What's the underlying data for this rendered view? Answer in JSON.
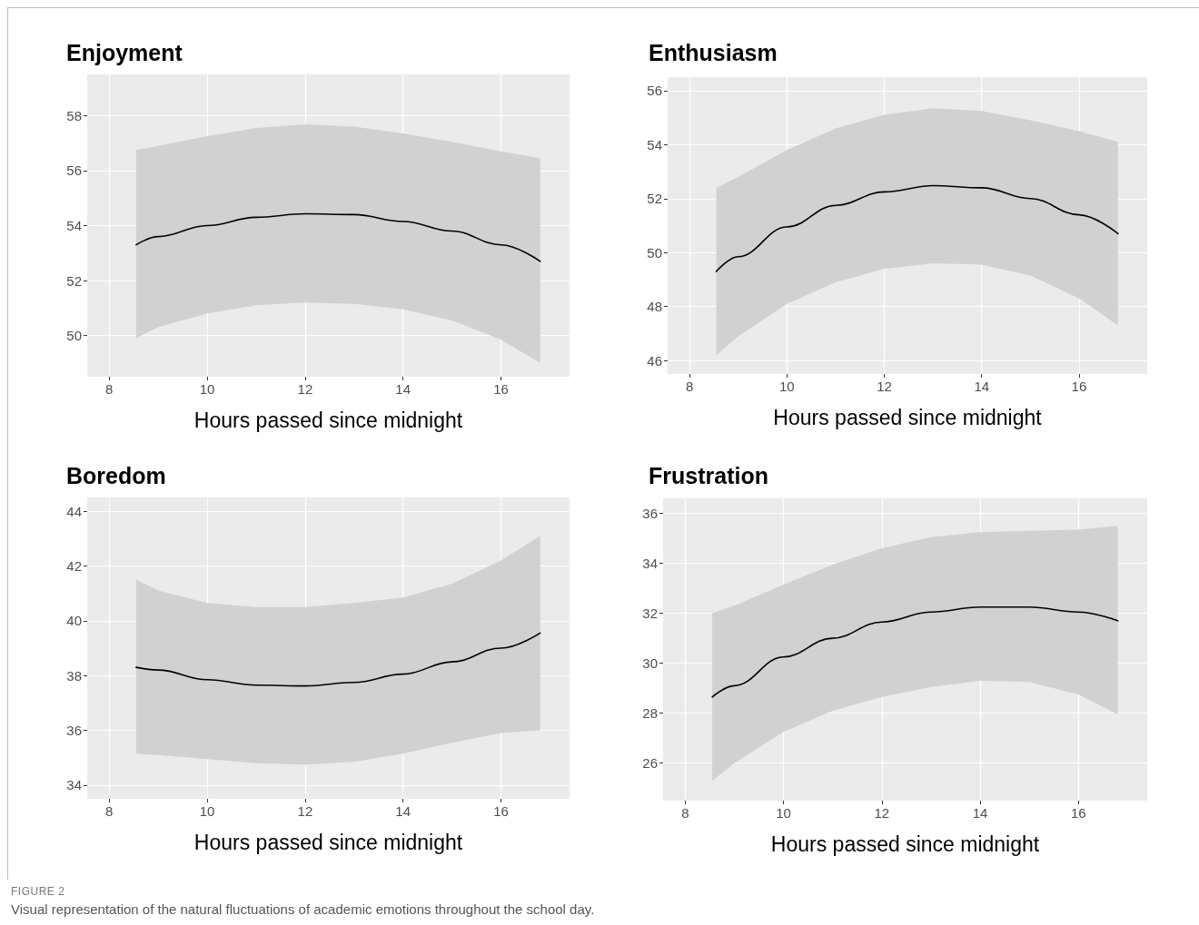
{
  "chart_data": [
    {
      "type": "line",
      "title": "Enjoyment",
      "xlabel": "Hours passed since midnight",
      "xlim": [
        7.55,
        17.4
      ],
      "xticks": [
        8,
        10,
        12,
        14,
        16
      ],
      "ylim": [
        48.5,
        59.5
      ],
      "yticks": [
        50,
        52,
        54,
        56,
        58
      ],
      "grid": true,
      "marker": "none",
      "series": [
        {
          "color": "#000000",
          "x": [
            8.55,
            9,
            10,
            11,
            12,
            13,
            14,
            15,
            16,
            16.8
          ],
          "values": [
            53.3,
            53.6,
            54.0,
            54.3,
            54.43,
            54.4,
            54.15,
            53.8,
            53.3,
            52.7
          ],
          "lower": [
            49.9,
            50.3,
            50.8,
            51.1,
            51.2,
            51.15,
            50.95,
            50.55,
            49.85,
            49.0
          ],
          "upper": [
            56.75,
            56.9,
            57.25,
            57.55,
            57.68,
            57.6,
            57.35,
            57.05,
            56.7,
            56.45
          ]
        }
      ]
    },
    {
      "type": "line",
      "title": "Enthusiasm",
      "xlabel": "Hours passed since midnight",
      "xlim": [
        7.55,
        17.4
      ],
      "xticks": [
        8,
        10,
        12,
        14,
        16
      ],
      "ylim": [
        45.5,
        56.5
      ],
      "yticks": [
        46,
        48,
        50,
        52,
        54,
        56
      ],
      "grid": true,
      "marker": "none",
      "series": [
        {
          "color": "#000000",
          "x": [
            8.55,
            9,
            10,
            11,
            12,
            13,
            14,
            15,
            16,
            16.8
          ],
          "values": [
            49.3,
            49.85,
            50.95,
            51.75,
            52.25,
            52.48,
            52.4,
            52.0,
            51.4,
            50.7
          ],
          "lower": [
            46.2,
            46.9,
            48.1,
            48.9,
            49.4,
            49.6,
            49.55,
            49.15,
            48.3,
            47.3
          ],
          "upper": [
            52.4,
            52.8,
            53.8,
            54.6,
            55.1,
            55.35,
            55.25,
            54.9,
            54.5,
            54.1
          ]
        }
      ]
    },
    {
      "type": "line",
      "title": "Boredom",
      "xlabel": "Hours passed since midnight",
      "xlim": [
        7.55,
        17.4
      ],
      "xticks": [
        8,
        10,
        12,
        14,
        16
      ],
      "ylim": [
        33.5,
        44.5
      ],
      "yticks": [
        34,
        36,
        38,
        40,
        42,
        44
      ],
      "grid": true,
      "marker": "none",
      "series": [
        {
          "color": "#000000",
          "x": [
            8.55,
            9,
            10,
            11,
            12,
            13,
            14,
            15,
            16,
            16.8
          ],
          "values": [
            38.3,
            38.2,
            37.85,
            37.65,
            37.62,
            37.75,
            38.05,
            38.5,
            39.0,
            39.55
          ],
          "lower": [
            35.15,
            35.1,
            34.95,
            34.8,
            34.75,
            34.85,
            35.15,
            35.55,
            35.9,
            36.0
          ],
          "upper": [
            41.5,
            41.1,
            40.65,
            40.5,
            40.5,
            40.65,
            40.85,
            41.35,
            42.2,
            43.1
          ]
        }
      ]
    },
    {
      "type": "line",
      "title": "Frustration",
      "xlabel": "Hours passed since midnight",
      "xlim": [
        7.55,
        17.4
      ],
      "xticks": [
        8,
        10,
        12,
        14,
        16
      ],
      "ylim": [
        24.5,
        36.6
      ],
      "yticks": [
        26,
        28,
        30,
        32,
        34,
        36
      ],
      "grid": true,
      "marker": "none",
      "series": [
        {
          "color": "#000000",
          "x": [
            8.55,
            9,
            10,
            11,
            12,
            13,
            14,
            15,
            16,
            16.8
          ],
          "values": [
            28.65,
            29.1,
            30.25,
            31.0,
            31.65,
            32.05,
            32.25,
            32.25,
            32.05,
            31.7
          ],
          "lower": [
            25.3,
            26.0,
            27.25,
            28.1,
            28.65,
            29.05,
            29.3,
            29.25,
            28.75,
            27.95
          ],
          "upper": [
            32.0,
            32.3,
            33.15,
            33.95,
            34.6,
            35.05,
            35.25,
            35.3,
            35.35,
            35.5
          ]
        }
      ],
      "annotations": [
        "FIGURE 2",
        "Visual representation of the natural fluctuations of academic emotions throughout the school day."
      ]
    }
  ]
}
